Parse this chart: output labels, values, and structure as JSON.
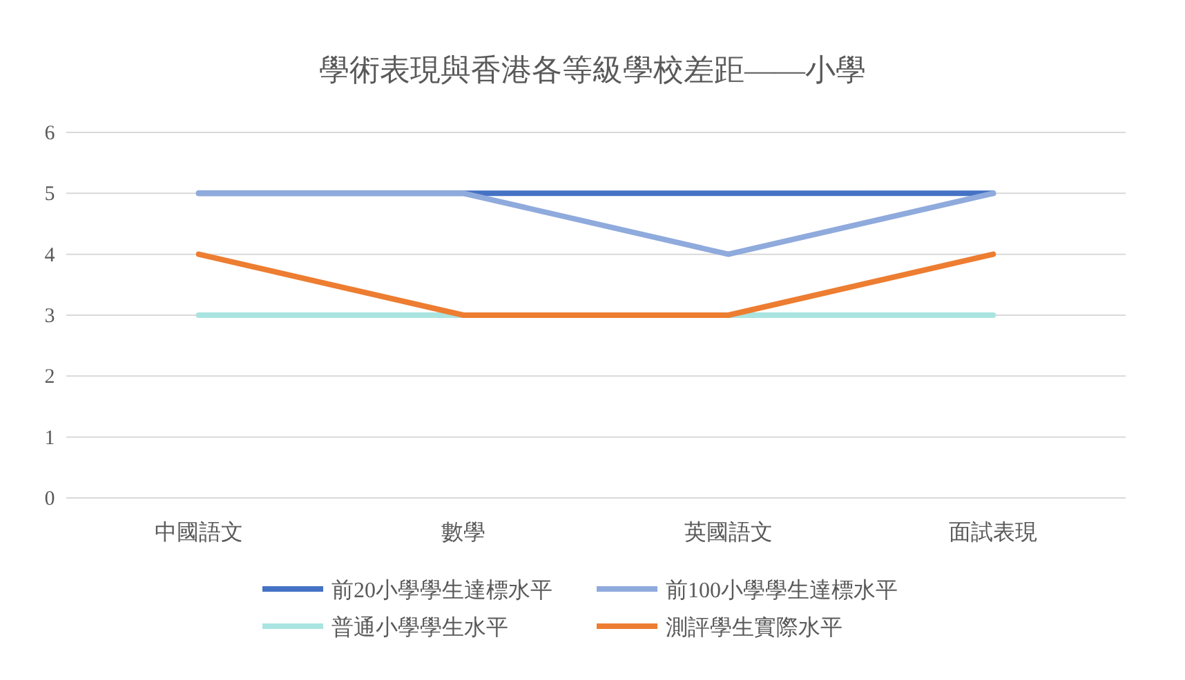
{
  "chart_data": {
    "type": "line",
    "title": "學術表現與香港各等級學校差距——小學",
    "categories": [
      "中國語文",
      "數學",
      "英國語文",
      "面試表現"
    ],
    "series": [
      {
        "name": "前20小學學生達標水平",
        "color": "#4472c4",
        "values": [
          5,
          5,
          5,
          5
        ]
      },
      {
        "name": "前100小學學生達標水平",
        "color": "#8faadc",
        "values": [
          5,
          5,
          4,
          5
        ]
      },
      {
        "name": "普通小學學生水平",
        "color": "#a9e4e0",
        "values": [
          3,
          3,
          3,
          3
        ]
      },
      {
        "name": "測評學生實際水平",
        "color": "#ed7d31",
        "values": [
          4,
          3,
          3,
          4
        ]
      }
    ],
    "ylim": [
      0,
      6
    ],
    "yticks": [
      0,
      1,
      2,
      3,
      4,
      5,
      6
    ],
    "grid": "y",
    "legend": "bottom",
    "marker": "none",
    "line_style": "solid"
  }
}
